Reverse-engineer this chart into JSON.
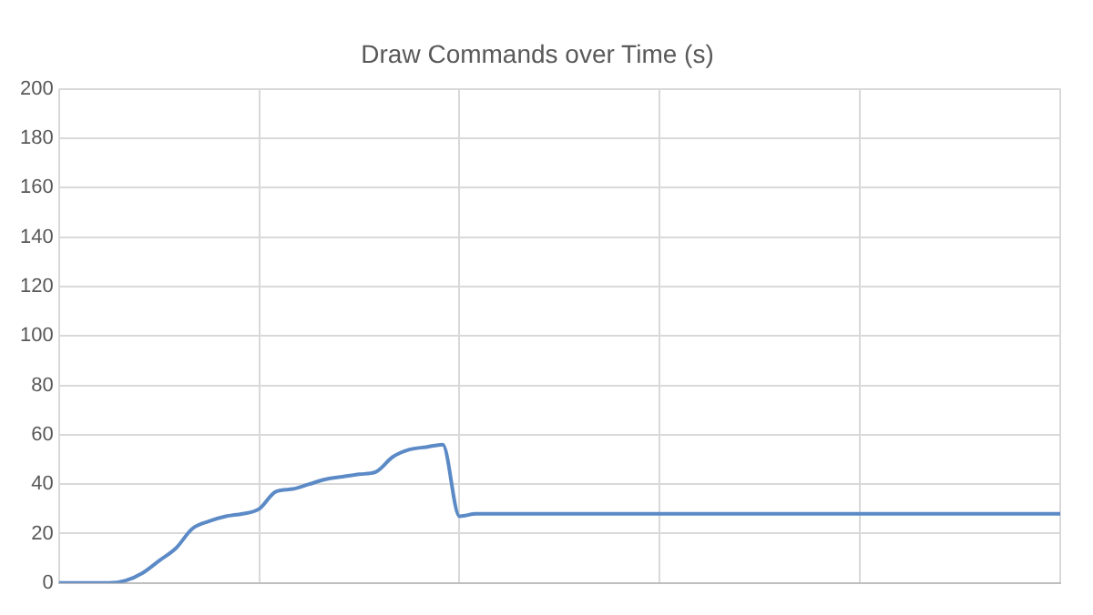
{
  "chart_data": {
    "type": "line",
    "title": "Draw Commands over Time (s)",
    "categories": [
      null,
      null,
      null,
      null,
      null,
      null,
      null,
      null,
      null,
      null,
      null,
      null,
      null,
      null,
      null,
      null,
      null,
      null,
      null,
      null,
      null,
      null,
      null,
      null,
      null,
      null,
      null,
      null,
      null,
      null,
      null,
      null,
      null,
      null,
      null,
      null,
      null,
      null,
      null,
      null,
      null,
      null,
      null,
      null,
      null,
      null,
      null,
      null,
      null,
      null,
      null,
      null,
      null,
      null,
      null,
      null,
      null,
      null,
      null,
      null,
      null
    ],
    "series": [
      {
        "color": "#5b8ac6",
        "values": [
          0,
          0,
          0,
          0,
          1,
          4,
          9,
          14,
          22,
          25,
          27,
          28,
          30,
          37,
          38,
          40,
          42,
          43,
          44,
          45,
          51,
          54,
          55,
          56,
          27,
          28,
          28,
          28,
          28,
          28,
          28,
          28,
          28,
          28,
          28,
          28,
          28,
          28,
          28,
          28,
          28,
          28,
          28,
          28,
          28,
          28,
          28,
          28,
          28,
          28,
          28,
          28,
          28,
          28,
          28,
          28,
          28,
          28,
          28,
          28,
          28
        ]
      }
    ],
    "ylim": [
      0,
      200
    ],
    "yticks": [
      0,
      20,
      40,
      60,
      80,
      100,
      120,
      140,
      160,
      180,
      200
    ],
    "grid": true,
    "legend": false,
    "tick_labels": "y",
    "marker": "none",
    "line_style": "solid"
  }
}
